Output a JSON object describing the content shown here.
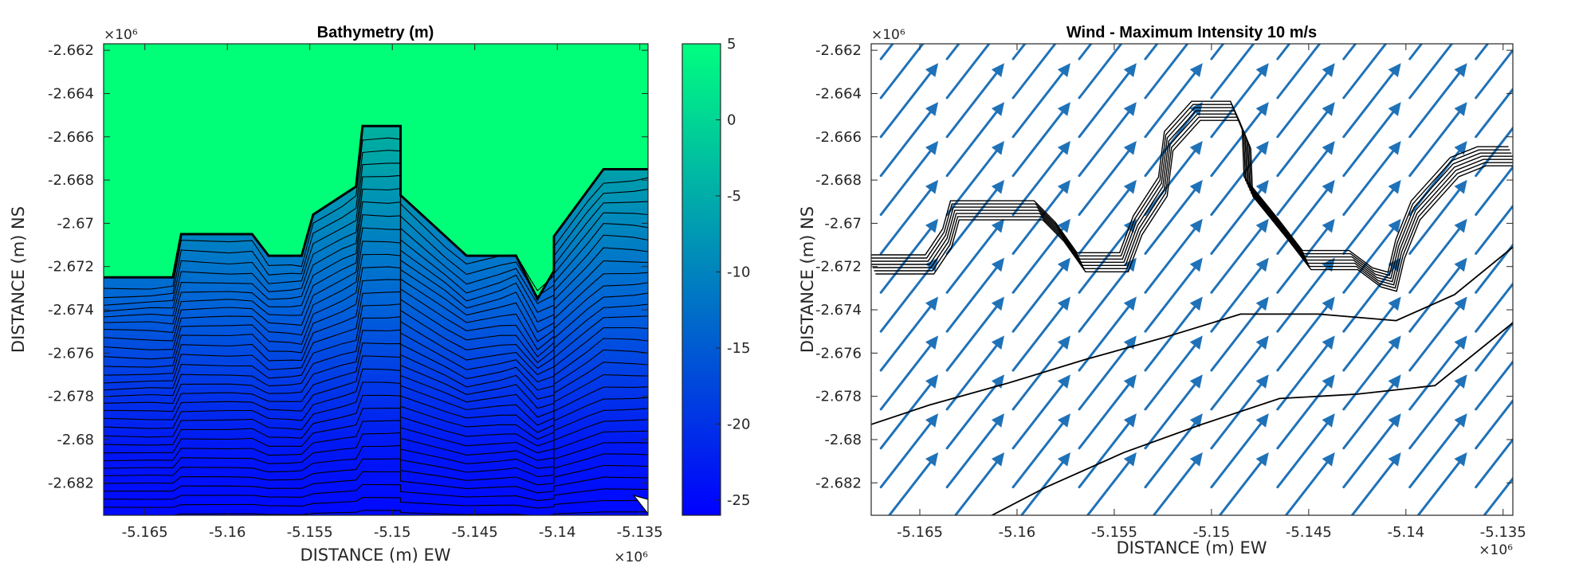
{
  "chart_data": [
    {
      "type": "heatmap",
      "title": "Bathymetry (m)",
      "xlabel": "DISTANCE (m) EW",
      "ylabel": "DISTANCE (m) NS",
      "x_exponent_label": "×10⁶",
      "y_exponent_label": "×10⁶",
      "xlim": [
        -5.1675,
        -5.1345
      ],
      "ylim": [
        -2.6835,
        -2.6617
      ],
      "xticks": [
        -5.165,
        -5.16,
        -5.155,
        -5.15,
        -5.145,
        -5.14,
        -5.135
      ],
      "xtick_labels": [
        "-5.165",
        "-5.16",
        "-5.155",
        "-5.15",
        "-5.145",
        "-5.14",
        "-5.135"
      ],
      "yticks": [
        -2.662,
        -2.664,
        -2.666,
        -2.668,
        -2.67,
        -2.672,
        -2.674,
        -2.676,
        -2.678,
        -2.68,
        -2.682
      ],
      "ytick_labels": [
        "-2.662",
        "-2.664",
        "-2.666",
        "-2.668",
        "-2.67",
        "-2.672",
        "-2.674",
        "-2.676",
        "-2.678",
        "-2.68",
        "-2.682"
      ],
      "colorbar": {
        "range": [
          -26,
          5
        ],
        "ticks": [
          5,
          0,
          -5,
          -10,
          -15,
          -20,
          -25
        ],
        "tick_labels": [
          "5",
          "0",
          "-5",
          "-10",
          "-15",
          "-20",
          "-25"
        ],
        "colors": [
          "#0000ff",
          "#00ff80"
        ]
      },
      "coastline": [
        [
          -5.1675,
          -2.6725
        ],
        [
          -5.1633,
          -2.6725
        ],
        [
          -5.1628,
          -2.6705
        ],
        [
          -5.1585,
          -2.6705
        ],
        [
          -5.1575,
          -2.6715
        ],
        [
          -5.1555,
          -2.6715
        ],
        [
          -5.1548,
          -2.6696
        ],
        [
          -5.1522,
          -2.6683
        ],
        [
          -5.1518,
          -2.6655
        ],
        [
          -5.1495,
          -2.6655
        ],
        [
          -5.1495,
          -2.6687
        ],
        [
          -5.1455,
          -2.6715
        ],
        [
          -5.1425,
          -2.6715
        ],
        [
          -5.1412,
          -2.6735
        ],
        [
          -5.1402,
          -2.6722
        ],
        [
          -5.1402,
          -2.6706
        ],
        [
          -5.1372,
          -2.6675
        ],
        [
          -5.1345,
          -2.6675
        ]
      ],
      "depth_contour_count": 30
    },
    {
      "type": "scatter",
      "title": "Wind - Maximum Intensity 10 m/s",
      "xlabel": "DISTANCE (m) EW",
      "ylabel": "DISTANCE (m) NS",
      "x_exponent_label": "×10⁶",
      "y_exponent_label": "×10⁶",
      "xlim": [
        -5.1675,
        -5.1345
      ],
      "ylim": [
        -2.6835,
        -2.6617
      ],
      "xticks": [
        -5.165,
        -5.16,
        -5.155,
        -5.15,
        -5.145,
        -5.14,
        -5.135
      ],
      "xtick_labels": [
        "-5.165",
        "-5.16",
        "-5.155",
        "-5.15",
        "-5.145",
        "-5.14",
        "-5.135"
      ],
      "yticks": [
        -2.662,
        -2.664,
        -2.666,
        -2.668,
        -2.67,
        -2.672,
        -2.674,
        -2.676,
        -2.678,
        -2.68,
        -2.682
      ],
      "ytick_labels": [
        "-2.662",
        "-2.664",
        "-2.666",
        "-2.668",
        "-2.67",
        "-2.672",
        "-2.674",
        "-2.676",
        "-2.678",
        "-2.68",
        "-2.682"
      ],
      "wind": {
        "max_intensity_ms": 10,
        "direction": "south-west to north-east",
        "u_ms": 5.6,
        "v_ms": 8.3,
        "grid_x": [
          -5.167,
          -5.1636,
          -5.1602,
          -5.1568,
          -5.1534,
          -5.15,
          -5.1466,
          -5.1432,
          -5.1398,
          -5.1364,
          -5.133
        ],
        "grid_y": [
          -2.684,
          -2.6822,
          -2.6804,
          -2.6786,
          -2.6768,
          -2.675,
          -2.6732,
          -2.6714,
          -2.6696,
          -2.6678,
          -2.666,
          -2.6642,
          -2.6624,
          -2.6606
        ],
        "color": "#1f72b8"
      },
      "coastline": [
        [
          -5.1675,
          -2.6719
        ],
        [
          -5.1645,
          -2.6719
        ],
        [
          -5.1636,
          -2.6707
        ],
        [
          -5.1632,
          -2.6694
        ],
        [
          -5.1589,
          -2.6694
        ],
        [
          -5.1578,
          -2.6704
        ],
        [
          -5.1567,
          -2.6718
        ],
        [
          -5.1545,
          -2.6718
        ],
        [
          -5.1538,
          -2.6701
        ],
        [
          -5.1525,
          -2.6683
        ],
        [
          -5.1522,
          -2.6662
        ],
        [
          -5.1508,
          -2.6648
        ],
        [
          -5.1488,
          -2.6648
        ],
        [
          -5.1482,
          -2.6661
        ],
        [
          -5.1481,
          -2.6683
        ],
        [
          -5.1463,
          -2.6703
        ],
        [
          -5.1451,
          -2.6717
        ],
        [
          -5.1427,
          -2.6717
        ],
        [
          -5.1415,
          -2.6725
        ],
        [
          -5.1407,
          -2.6727
        ],
        [
          -5.1403,
          -2.6712
        ],
        [
          -5.1395,
          -2.6694
        ],
        [
          -5.1375,
          -2.6674
        ],
        [
          -5.1361,
          -2.6669
        ],
        [
          -5.1345,
          -2.6669
        ]
      ],
      "depth_isolines": [
        [
          [
            -5.1675,
            -2.6793
          ],
          [
            -5.1645,
            -2.6784
          ],
          [
            -5.1605,
            -2.6774
          ],
          [
            -5.1565,
            -2.6763
          ],
          [
            -5.1525,
            -2.6753
          ],
          [
            -5.1485,
            -2.6742
          ],
          [
            -5.1445,
            -2.6742
          ],
          [
            -5.1405,
            -2.6745
          ],
          [
            -5.1375,
            -2.6733
          ],
          [
            -5.1345,
            -2.6711
          ]
        ],
        [
          [
            -5.1615,
            -2.6836
          ],
          [
            -5.1585,
            -2.6822
          ],
          [
            -5.1545,
            -2.6806
          ],
          [
            -5.1505,
            -2.6793
          ],
          [
            -5.1465,
            -2.6781
          ],
          [
            -5.1425,
            -2.6779
          ],
          [
            -5.1385,
            -2.6775
          ],
          [
            -5.1345,
            -2.6746
          ]
        ]
      ]
    }
  ]
}
